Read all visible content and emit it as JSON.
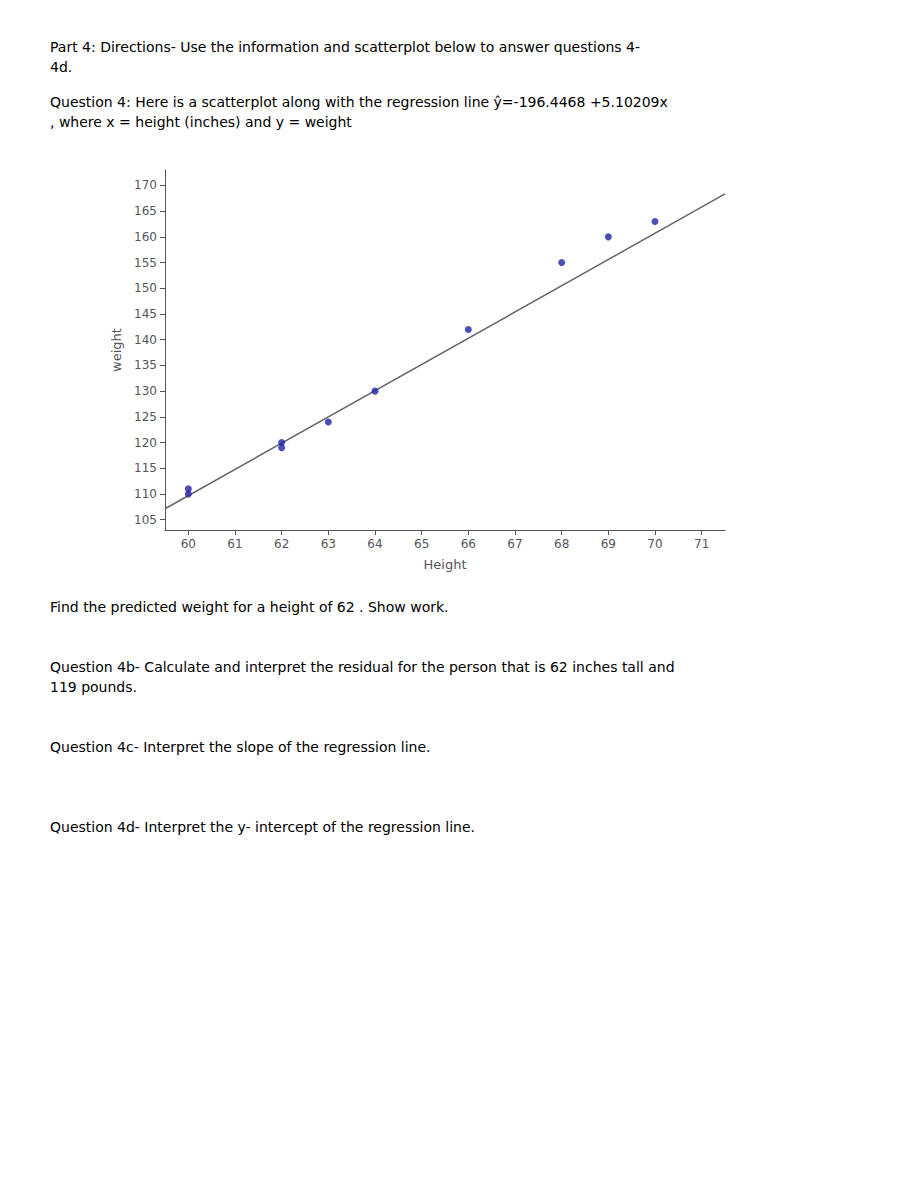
{
  "chart_data": {
    "type": "scatter",
    "annotations": [
      "Part 4: Directions- Use the information and scatterplot below to answer questions 4-",
      "4d.",
      "Question 4: Here is a scatterplot along with the regression line ŷ=-196.4468 +5.10209x",
      ", where x = height (inches) and y = weight",
      "Find the predicted weight for a height of 62 . Show work.",
      "Question 4b- Calculate and interpret the residual for the person that is 62 inches tall and",
      "119 pounds.",
      "Question 4c- Interpret the slope of the regression line.",
      "Question 4d- Interpret the y- intercept of the regression line."
    ],
    "xlabel": "Height",
    "ylabel": "weight",
    "series": [
      {
        "type": "scatter",
        "color": "#2222aa",
        "x": [
          60,
          60,
          62,
          62,
          63,
          64,
          66,
          68,
          69,
          70
        ],
        "values": [
          110,
          111,
          119,
          120,
          124,
          130,
          142,
          155,
          160,
          163
        ]
      },
      {
        "type": "line",
        "color": "#666666",
        "x": [
          59.5,
          71.5
        ],
        "values": [
          107.127555,
          168.352635
        ]
      }
    ],
    "xlim": [
      59.5,
      71.5
    ],
    "ylim": [
      103,
      173
    ],
    "xticks": [
      60,
      61,
      62,
      63,
      64,
      65,
      66,
      67,
      68,
      69,
      70,
      71
    ],
    "yticks": [
      105,
      110,
      115,
      120,
      125,
      130,
      135,
      140,
      145,
      150,
      155,
      160,
      165,
      170
    ],
    "grid": false
  }
}
